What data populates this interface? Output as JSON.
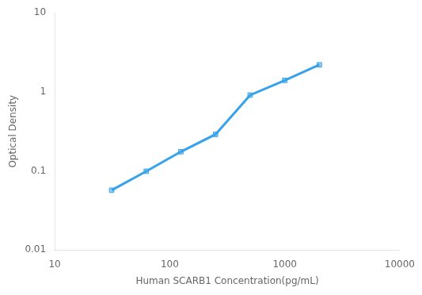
{
  "chart_data": {
    "type": "line",
    "x": [
      31.25,
      62.5,
      125,
      250,
      500,
      1000,
      2000
    ],
    "values": [
      0.057,
      0.099,
      0.175,
      0.29,
      0.91,
      1.4,
      2.2
    ],
    "xlabel": "Human SCARB1 Concentration(pg/mL)",
    "ylabel": "Optical Density",
    "xlim": [
      10,
      10000
    ],
    "ylim": [
      0.01,
      10
    ],
    "xticks": [
      10,
      100,
      1000,
      10000
    ],
    "yticks": [
      0.01,
      0.1,
      1,
      10
    ],
    "log": true,
    "grid": false,
    "marker": "square"
  }
}
